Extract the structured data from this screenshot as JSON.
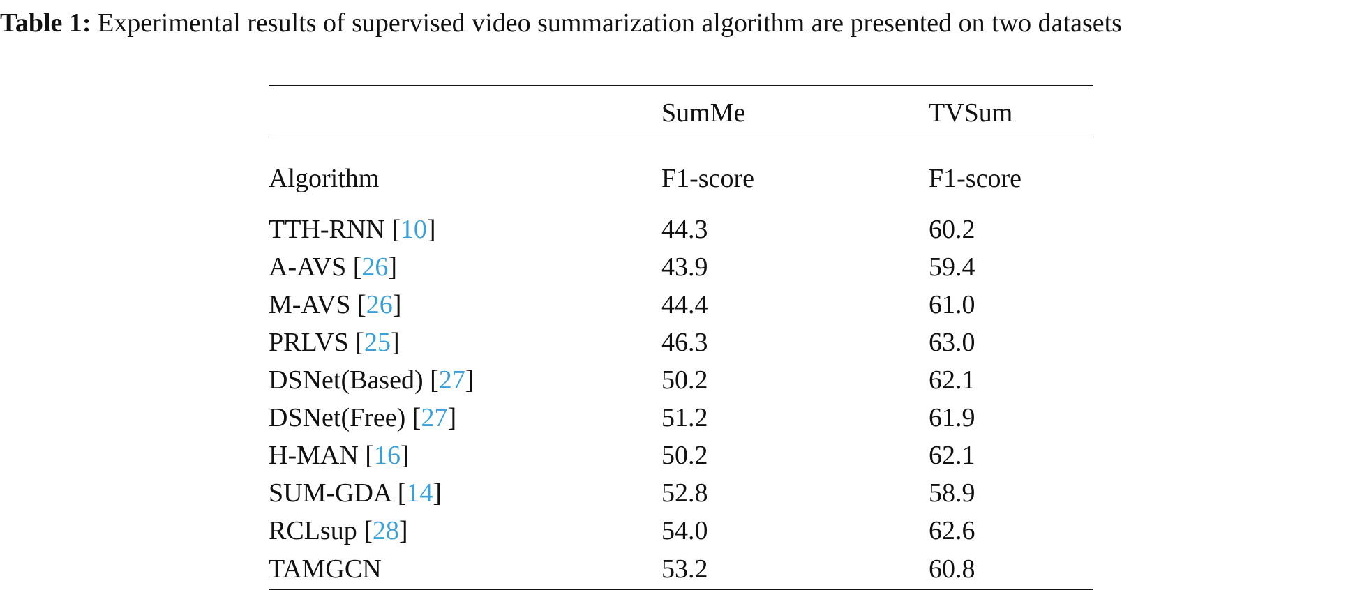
{
  "caption": {
    "label": "Table 1:",
    "text": " Experimental results of supervised video summarization algorithm are presented on two datasets"
  },
  "table": {
    "dataset_headers": [
      "",
      "SumMe",
      "TVSum"
    ],
    "metric_headers": [
      "Algorithm",
      "F1-score",
      "F1-score"
    ],
    "rows": [
      {
        "algorithm": "TTH-RNN",
        "ref": "10",
        "summe": "44.3",
        "tvsum": "60.2"
      },
      {
        "algorithm": "A-AVS",
        "ref": "26",
        "summe": "43.9",
        "tvsum": "59.4"
      },
      {
        "algorithm": "M-AVS",
        "ref": "26",
        "summe": "44.4",
        "tvsum": "61.0"
      },
      {
        "algorithm": "PRLVS",
        "ref": "25",
        "summe": "46.3",
        "tvsum": "63.0"
      },
      {
        "algorithm": "DSNet(Based)",
        "ref": "27",
        "summe": "50.2",
        "tvsum": "62.1"
      },
      {
        "algorithm": "DSNet(Free)",
        "ref": "27",
        "summe": "51.2",
        "tvsum": "61.9"
      },
      {
        "algorithm": "H-MAN",
        "ref": "16",
        "summe": "50.2",
        "tvsum": "62.1"
      },
      {
        "algorithm": "SUM-GDA",
        "ref": "14",
        "summe": "52.8",
        "tvsum": "58.9"
      },
      {
        "algorithm": "RCLsup",
        "ref": "28",
        "summe": "54.0",
        "tvsum": "62.6"
      },
      {
        "algorithm": "TAMGCN",
        "ref": "",
        "summe": "53.2",
        "tvsum": "60.8"
      }
    ]
  },
  "colors": {
    "citation": "#3aa0d8",
    "text": "#111111"
  }
}
